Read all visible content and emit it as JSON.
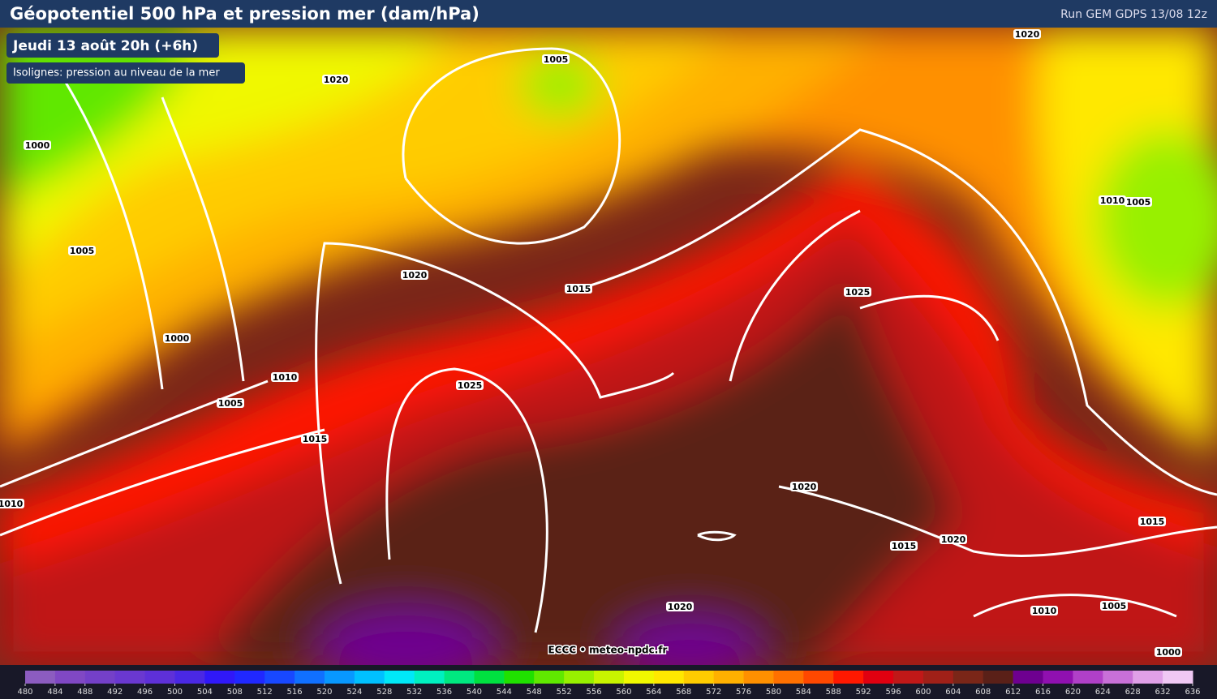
{
  "header": {
    "title": "Géopotentiel 500 hPa et pression mer (dam/hPa)",
    "run": "Run GEM GDPS 13/08 12z"
  },
  "badges": {
    "date": "Jeudi 13 août 20h (+6h)",
    "subtitle": "Isolignes: pression au niveau de la mer"
  },
  "isobar_labels": [
    1020,
    1005,
    1000,
    1005,
    1020,
    1015,
    1000,
    1010,
    1005,
    1025,
    1015,
    1010,
    1025,
    1010,
    1005,
    1020,
    1020,
    1015,
    1020,
    1015,
    1010,
    1005,
    1020,
    1000
  ],
  "credit": "ECCC • meteo-npdc.fr",
  "colorbar": {
    "ticks": [
      480,
      484,
      488,
      492,
      496,
      500,
      504,
      508,
      512,
      516,
      520,
      524,
      528,
      532,
      536,
      540,
      544,
      548,
      552,
      556,
      560,
      564,
      568,
      572,
      576,
      580,
      584,
      588,
      592,
      596,
      600,
      604,
      608,
      612,
      616,
      620,
      624,
      628,
      632,
      636
    ],
    "colors": [
      "#8c5cc0",
      "#8048c4",
      "#7440c8",
      "#6a38d0",
      "#5e30d8",
      "#4a28e4",
      "#3018f8",
      "#2028ff",
      "#1848ff",
      "#1070ff",
      "#0898ff",
      "#00c0ff",
      "#00e8f8",
      "#00f0c0",
      "#00e880",
      "#00e040",
      "#20e000",
      "#60e800",
      "#98f000",
      "#c8f400",
      "#f0f800",
      "#ffe800",
      "#ffcc00",
      "#ffb000",
      "#ff9000",
      "#ff7000",
      "#ff4800",
      "#ff1800",
      "#e00010",
      "#c01818",
      "#a02018",
      "#7a2618",
      "#5a2018",
      "#6e0090",
      "#9010b0",
      "#b040c8",
      "#c870d8",
      "#e0a0e8",
      "#f0c8f4"
    ]
  }
}
